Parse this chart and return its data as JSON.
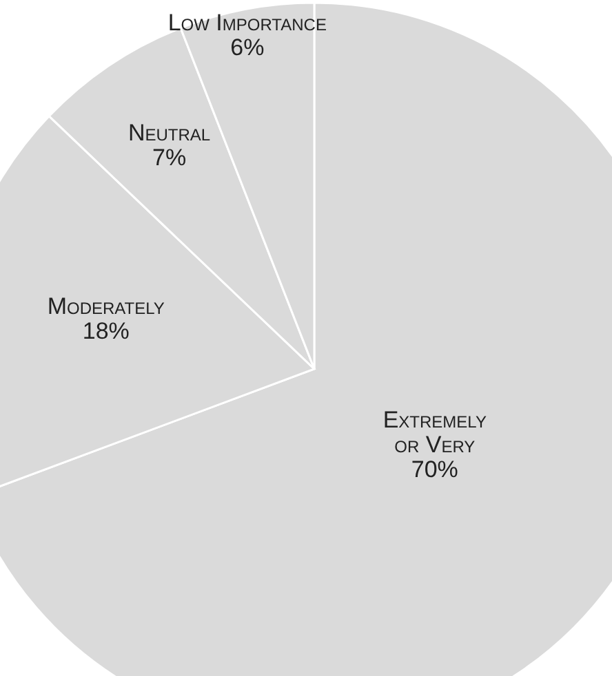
{
  "chart_data": {
    "type": "pie",
    "categories": [
      "Extremely or Very",
      "Moderately",
      "Neutral",
      "Low Importance"
    ],
    "values": [
      70,
      18,
      7,
      6
    ],
    "colors": [
      "#dadada",
      "#dadada",
      "#dadada",
      "#dadada"
    ],
    "value_labels": [
      "70%",
      "18%",
      "7%",
      "6%"
    ]
  }
}
